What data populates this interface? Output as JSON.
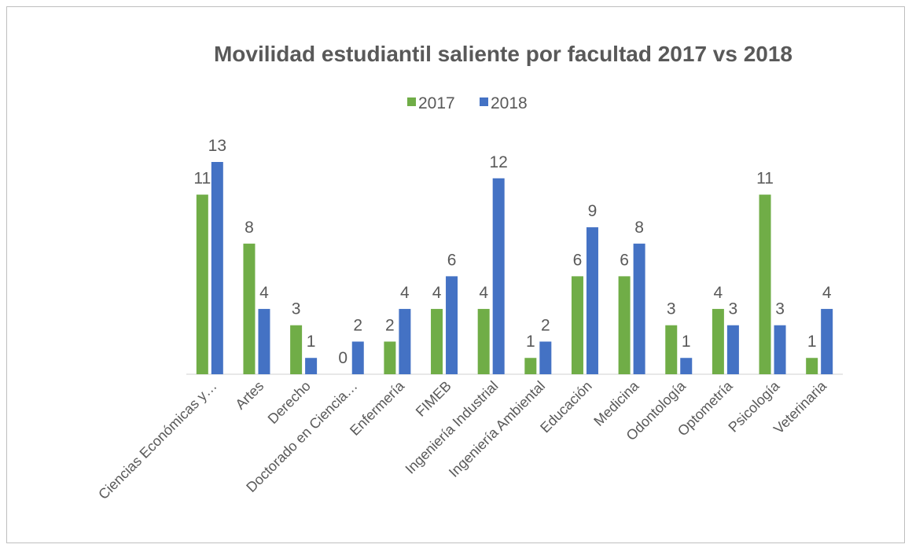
{
  "chart_data": {
    "type": "bar",
    "title": "Movilidad estudiantil saliente por facultad 2017 vs 2018",
    "categories": [
      "Ciencias Económicas y…",
      "Artes",
      "Derecho",
      "Doctorado en Ciencia…",
      "Enfermería",
      "FIMEB",
      "Ingeniería Industrial",
      "Ingeniería Ambiental",
      "Educación",
      "Medicina",
      "Odontología",
      "Optometría",
      "Psicología",
      "Veterinaria"
    ],
    "series": [
      {
        "name": "2017",
        "color": "#70ad47",
        "values": [
          11,
          8,
          3,
          0,
          2,
          4,
          4,
          1,
          6,
          6,
          3,
          4,
          11,
          1
        ]
      },
      {
        "name": "2018",
        "color": "#4472c4",
        "values": [
          13,
          4,
          1,
          2,
          4,
          6,
          12,
          2,
          9,
          8,
          1,
          3,
          3,
          4
        ]
      }
    ],
    "legend": "top"
  }
}
